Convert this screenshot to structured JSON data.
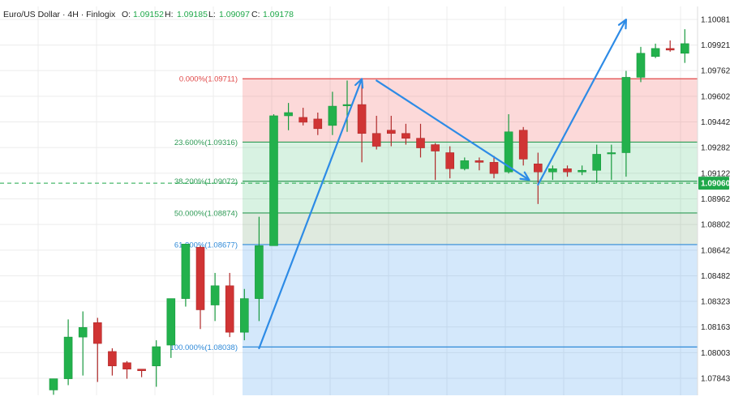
{
  "header": {
    "symbol": "Euro/US Dollar · 4H · Finlogix",
    "open_label": "O:",
    "open": "1.09152",
    "high_label": "H:",
    "high": "1.09185",
    "low_label": "L:",
    "low": "1.09097",
    "close_label": "C:",
    "close": "1.09178"
  },
  "chart_data": {
    "type": "candlestick",
    "title": "Euro/US Dollar · 4H · Finlogix",
    "xlabel": "",
    "ylabel": "",
    "ylim": [
      1.0774,
      1.1018
    ],
    "yticks": [
      "1.10081",
      "1.09921",
      "1.09762",
      "1.09602",
      "1.09442",
      "1.09282",
      "1.09122",
      "1.08962",
      "1.08802",
      "1.08642",
      "1.08482",
      "1.08323",
      "1.08163",
      "1.08003",
      "1.07843"
    ],
    "last_price": "1.09060",
    "grid": true,
    "colors": {
      "up": "#22b14c",
      "down": "#d03434",
      "up_border": "#189a3e",
      "down_border": "#b02a2a",
      "fib_red": "#e04848",
      "fib_green": "#2e9a55",
      "fib_blue": "#2f8ad8",
      "arrow": "#2d8be6",
      "price_label": "#1fa84a"
    },
    "candles": [
      {
        "o": 1.0777,
        "h": 1.0784,
        "l": 1.0774,
        "c": 1.0784
      },
      {
        "o": 1.0784,
        "h": 1.0821,
        "l": 1.078,
        "c": 1.081
      },
      {
        "o": 1.081,
        "h": 1.0826,
        "l": 1.0786,
        "c": 1.0816
      },
      {
        "o": 1.0819,
        "h": 1.0822,
        "l": 1.0782,
        "c": 1.0806
      },
      {
        "o": 1.0801,
        "h": 1.0803,
        "l": 1.0786,
        "c": 1.0792
      },
      {
        "o": 1.0794,
        "h": 1.0795,
        "l": 1.0784,
        "c": 1.079
      },
      {
        "o": 1.079,
        "h": 1.079,
        "l": 1.0785,
        "c": 1.0789
      },
      {
        "o": 1.0792,
        "h": 1.0808,
        "l": 1.0779,
        "c": 1.0804
      },
      {
        "o": 1.0805,
        "h": 1.0834,
        "l": 1.0797,
        "c": 1.0834
      },
      {
        "o": 1.0834,
        "h": 1.0868,
        "l": 1.0829,
        "c": 1.0868
      },
      {
        "o": 1.0866,
        "h": 1.0867,
        "l": 1.0815,
        "c": 1.0827
      },
      {
        "o": 1.083,
        "h": 1.085,
        "l": 1.082,
        "c": 1.0842
      },
      {
        "o": 1.0842,
        "h": 1.085,
        "l": 1.081,
        "c": 1.0813
      },
      {
        "o": 1.0813,
        "h": 1.084,
        "l": 1.0808,
        "c": 1.0834
      },
      {
        "o": 1.0834,
        "h": 1.0885,
        "l": 1.082,
        "c": 1.0867
      },
      {
        "o": 1.0867,
        "h": 1.0949,
        "l": 1.0867,
        "c": 1.0948
      },
      {
        "o": 1.0948,
        "h": 1.0956,
        "l": 1.0939,
        "c": 1.095
      },
      {
        "o": 1.0947,
        "h": 1.0953,
        "l": 1.0942,
        "c": 1.0944
      },
      {
        "o": 1.0946,
        "h": 1.095,
        "l": 1.0936,
        "c": 1.094
      },
      {
        "o": 1.0942,
        "h": 1.0963,
        "l": 1.0936,
        "c": 1.0954
      },
      {
        "o": 1.0955,
        "h": 1.097,
        "l": 1.0938,
        "c": 1.0955
      },
      {
        "o": 1.0955,
        "h": 1.0969,
        "l": 1.0919,
        "c": 1.0937
      },
      {
        "o": 1.0937,
        "h": 1.0948,
        "l": 1.0927,
        "c": 1.0929
      },
      {
        "o": 1.0939,
        "h": 1.0948,
        "l": 1.0929,
        "c": 1.0937
      },
      {
        "o": 1.0937,
        "h": 1.0943,
        "l": 1.093,
        "c": 1.0934
      },
      {
        "o": 1.0934,
        "h": 1.0943,
        "l": 1.0922,
        "c": 1.0928
      },
      {
        "o": 1.093,
        "h": 1.0931,
        "l": 1.0908,
        "c": 1.0926
      },
      {
        "o": 1.0925,
        "h": 1.0929,
        "l": 1.0909,
        "c": 1.0915
      },
      {
        "o": 1.0915,
        "h": 1.0922,
        "l": 1.0914,
        "c": 1.092
      },
      {
        "o": 1.092,
        "h": 1.0922,
        "l": 1.0914,
        "c": 1.0919
      },
      {
        "o": 1.0919,
        "h": 1.0923,
        "l": 1.0909,
        "c": 1.0912
      },
      {
        "o": 1.0913,
        "h": 1.0949,
        "l": 1.0912,
        "c": 1.0938
      },
      {
        "o": 1.0939,
        "h": 1.0941,
        "l": 1.0917,
        "c": 1.0921
      },
      {
        "o": 1.0918,
        "h": 1.0925,
        "l": 1.0893,
        "c": 1.0913
      },
      {
        "o": 1.0913,
        "h": 1.0917,
        "l": 1.0908,
        "c": 1.0915
      },
      {
        "o": 1.0915,
        "h": 1.0917,
        "l": 1.091,
        "c": 1.0913
      },
      {
        "o": 1.0913,
        "h": 1.0917,
        "l": 1.0911,
        "c": 1.0914
      },
      {
        "o": 1.0914,
        "h": 1.093,
        "l": 1.0906,
        "c": 1.0924
      },
      {
        "o": 1.0925,
        "h": 1.093,
        "l": 1.0908,
        "c": 1.0925
      },
      {
        "o": 1.0925,
        "h": 1.0976,
        "l": 1.091,
        "c": 1.0972
      },
      {
        "o": 1.0972,
        "h": 1.0991,
        "l": 1.0969,
        "c": 1.0987
      },
      {
        "o": 1.0985,
        "h": 1.0993,
        "l": 1.0984,
        "c": 1.099
      },
      {
        "o": 1.099,
        "h": 1.0995,
        "l": 1.0988,
        "c": 1.0989
      },
      {
        "o": 1.0987,
        "h": 1.1002,
        "l": 1.0981,
        "c": 1.0993
      }
    ],
    "fibonacci": {
      "from": 1.08038,
      "to": 1.09711,
      "levels": [
        {
          "label": "0.000%(1.09711)",
          "price": 1.09711,
          "color": "#e04848"
        },
        {
          "label": "23.600%(1.09316)",
          "price": 1.09316,
          "color": "#2e9a55"
        },
        {
          "label": "38.200%(1.09072)",
          "price": 1.09072,
          "color": "#2e9a55"
        },
        {
          "label": "50.000%(1.08874)",
          "price": 1.08874,
          "color": "#2e9a55"
        },
        {
          "label": "61.800%(1.08677)",
          "price": 1.08677,
          "color": "#2f8ad8"
        },
        {
          "label": "100.000%(1.08038)",
          "price": 1.08038,
          "color": "#2f8ad8"
        }
      ]
    },
    "arrows": [
      {
        "from_index": 14,
        "from_price": 1.0803,
        "to_index": 21,
        "to_price": 1.0971
      },
      {
        "from_index": 22,
        "from_price": 1.097,
        "to_index": 32.4,
        "to_price": 1.0908
      },
      {
        "from_index": 33,
        "from_price": 1.0905,
        "to_index": 39,
        "to_price": 1.1008
      }
    ]
  }
}
